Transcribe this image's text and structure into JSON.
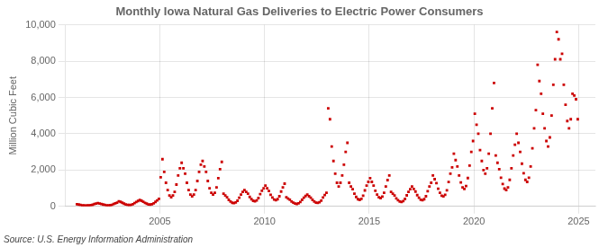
{
  "chart_data": {
    "type": "scatter",
    "title": "Monthly Iowa Natural Gas Deliveries to Electric Power Consumers",
    "ylabel": "Million Cubic Feet",
    "annotations": [
      "Source: U.S. Energy Information Administration"
    ],
    "color": "#cc0000",
    "marker": "square",
    "grid": true,
    "xlim": [
      2000.5,
      2025.8
    ],
    "xticks": [
      2005,
      2010,
      2015,
      2020,
      2025
    ],
    "ylim": [
      0,
      10000
    ],
    "yticks": [
      0,
      {
        "value": 2000,
        "label": "2,000"
      },
      {
        "value": 4000,
        "label": "4,000"
      },
      {
        "value": 6000,
        "label": "6,000"
      },
      {
        "value": 8000,
        "label": "8,000"
      },
      {
        "value": 10000,
        "label": "10,000"
      }
    ],
    "x": [
      2001.0416666666667,
      2001.125,
      2001.2083333333333,
      2001.2916666666667,
      2001.375,
      2001.4583333333333,
      2001.5416666666667,
      2001.625,
      2001.7083333333333,
      2001.7916666666667,
      2001.875,
      2001.9583333333333,
      2002.0416666666667,
      2002.125,
      2002.2083333333333,
      2002.2916666666667,
      2002.375,
      2002.4583333333333,
      2002.5416666666667,
      2002.625,
      2002.7083333333333,
      2002.7916666666667,
      2002.875,
      2002.9583333333333,
      2003.0416666666667,
      2003.125,
      2003.2083333333333,
      2003.2916666666667,
      2003.375,
      2003.4583333333333,
      2003.5416666666667,
      2003.625,
      2003.7083333333333,
      2003.7916666666667,
      2003.875,
      2003.9583333333333,
      2004.0416666666667,
      2004.125,
      2004.2083333333333,
      2004.2916666666667,
      2004.375,
      2004.4583333333333,
      2004.5416666666667,
      2004.625,
      2004.7083333333333,
      2004.7916666666667,
      2004.875,
      2004.9583333333333,
      2005.0416666666667,
      2005.125,
      2005.2083333333333,
      2005.2916666666667,
      2005.375,
      2005.4583333333333,
      2005.5416666666667,
      2005.625,
      2005.7083333333333,
      2005.7916666666667,
      2005.875,
      2005.9583333333333,
      2006.0416666666667,
      2006.125,
      2006.2083333333333,
      2006.2916666666667,
      2006.375,
      2006.4583333333333,
      2006.5416666666667,
      2006.625,
      2006.7083333333333,
      2006.7916666666667,
      2006.875,
      2006.9583333333333,
      2007.0416666666667,
      2007.125,
      2007.2083333333333,
      2007.2916666666667,
      2007.375,
      2007.4583333333333,
      2007.5416666666667,
      2007.625,
      2007.7083333333333,
      2007.7916666666667,
      2007.875,
      2007.9583333333333,
      2008.0416666666667,
      2008.125,
      2008.2083333333333,
      2008.2916666666667,
      2008.375,
      2008.4583333333333,
      2008.5416666666667,
      2008.625,
      2008.7083333333333,
      2008.7916666666667,
      2008.875,
      2008.9583333333333,
      2009.0416666666667,
      2009.125,
      2009.2083333333333,
      2009.2916666666667,
      2009.375,
      2009.4583333333333,
      2009.5416666666667,
      2009.625,
      2009.7083333333333,
      2009.7916666666667,
      2009.875,
      2009.9583333333333,
      2010.0416666666667,
      2010.125,
      2010.2083333333333,
      2010.2916666666667,
      2010.375,
      2010.4583333333333,
      2010.5416666666667,
      2010.625,
      2010.7083333333333,
      2010.7916666666667,
      2010.875,
      2010.9583333333333,
      2011.0416666666667,
      2011.125,
      2011.2083333333333,
      2011.2916666666667,
      2011.375,
      2011.4583333333333,
      2011.5416666666667,
      2011.625,
      2011.7083333333333,
      2011.7916666666667,
      2011.875,
      2011.9583333333333,
      2012.0416666666667,
      2012.125,
      2012.2083333333333,
      2012.2916666666667,
      2012.375,
      2012.4583333333333,
      2012.5416666666667,
      2012.625,
      2012.7083333333333,
      2012.7916666666667,
      2012.875,
      2012.9583333333333,
      2013.0416666666667,
      2013.125,
      2013.2083333333333,
      2013.2916666666667,
      2013.375,
      2013.4583333333333,
      2013.5416666666667,
      2013.625,
      2013.7083333333333,
      2013.7916666666667,
      2013.875,
      2013.9583333333333,
      2014.0416666666667,
      2014.125,
      2014.2083333333333,
      2014.2916666666667,
      2014.375,
      2014.4583333333333,
      2014.5416666666667,
      2014.625,
      2014.7083333333333,
      2014.7916666666667,
      2014.875,
      2014.9583333333333,
      2015.0416666666667,
      2015.125,
      2015.2083333333333,
      2015.2916666666667,
      2015.375,
      2015.4583333333333,
      2015.5416666666667,
      2015.625,
      2015.7083333333333,
      2015.7916666666667,
      2015.875,
      2015.9583333333333,
      2016.0416666666667,
      2016.125,
      2016.2083333333333,
      2016.2916666666667,
      2016.375,
      2016.4583333333333,
      2016.5416666666667,
      2016.625,
      2016.7083333333333,
      2016.7916666666667,
      2016.875,
      2016.9583333333333,
      2017.0416666666667,
      2017.125,
      2017.2083333333333,
      2017.2916666666667,
      2017.375,
      2017.4583333333333,
      2017.5416666666667,
      2017.625,
      2017.7083333333333,
      2017.7916666666667,
      2017.875,
      2017.9583333333333,
      2018.0416666666667,
      2018.125,
      2018.2083333333333,
      2018.2916666666667,
      2018.375,
      2018.4583333333333,
      2018.5416666666667,
      2018.625,
      2018.7083333333333,
      2018.7916666666667,
      2018.875,
      2018.9583333333333,
      2019.0416666666667,
      2019.125,
      2019.2083333333333,
      2019.2916666666667,
      2019.375,
      2019.4583333333333,
      2019.5416666666667,
      2019.625,
      2019.7083333333333,
      2019.7916666666667,
      2019.875,
      2019.9583333333333,
      2020.0416666666667,
      2020.125,
      2020.2083333333333,
      2020.2916666666667,
      2020.375,
      2020.4583333333333,
      2020.5416666666667,
      2020.625,
      2020.7083333333333,
      2020.7916666666667,
      2020.875,
      2020.9583333333333,
      2021.0416666666667,
      2021.125,
      2021.2083333333333,
      2021.2916666666667,
      2021.375,
      2021.4583333333333,
      2021.5416666666667,
      2021.625,
      2021.7083333333333,
      2021.7916666666667,
      2021.875,
      2021.9583333333333,
      2022.0416666666667,
      2022.125,
      2022.2083333333333,
      2022.2916666666667,
      2022.375,
      2022.4583333333333,
      2022.5416666666667,
      2022.625,
      2022.7083333333333,
      2022.7916666666667,
      2022.875,
      2022.9583333333333,
      2023.0416666666667,
      2023.125,
      2023.2083333333333,
      2023.2916666666667,
      2023.375,
      2023.4583333333333,
      2023.5416666666667,
      2023.625,
      2023.7083333333333,
      2023.7916666666667,
      2023.875,
      2023.9583333333333,
      2024.0416666666667,
      2024.125,
      2024.2083333333333,
      2024.2916666666667,
      2024.375,
      2024.4583333333333,
      2024.5416666666667,
      2024.625,
      2024.7083333333333,
      2024.7916666666667,
      2024.875,
      2024.9583333333333
    ],
    "values": [
      120,
      100,
      80,
      60,
      50,
      40,
      50,
      60,
      70,
      90,
      130,
      160,
      180,
      160,
      130,
      100,
      80,
      60,
      55,
      65,
      80,
      130,
      170,
      210,
      280,
      250,
      200,
      150,
      110,
      80,
      75,
      85,
      120,
      180,
      240,
      300,
      350,
      310,
      260,
      190,
      150,
      110,
      100,
      120,
      170,
      250,
      330,
      420,
      1600,
      2600,
      1900,
      1300,
      900,
      600,
      500,
      600,
      800,
      1200,
      1700,
      2100,
      2400,
      2100,
      1800,
      1300,
      900,
      650,
      550,
      650,
      900,
      1400,
      1900,
      2300,
      2500,
      2200,
      1900,
      1400,
      1000,
      750,
      650,
      750,
      1050,
      1550,
      2050,
      2450,
      700,
      600,
      500,
      360,
      270,
      200,
      180,
      220,
      310,
      480,
      650,
      800,
      900,
      800,
      700,
      520,
      400,
      310,
      280,
      330,
      460,
      680,
      860,
      1000,
      1150,
      1000,
      850,
      640,
      490,
      380,
      340,
      400,
      560,
      820,
      1050,
      1250,
      500,
      430,
      370,
      270,
      210,
      160,
      140,
      170,
      240,
      360,
      480,
      570,
      650,
      560,
      480,
      360,
      270,
      210,
      190,
      230,
      320,
      490,
      630,
      750,
      5400,
      4800,
      3300,
      2500,
      1800,
      1300,
      1100,
      1300,
      1700,
      2300,
      3000,
      3500,
      1300,
      1100,
      950,
      700,
      520,
      400,
      360,
      420,
      590,
      880,
      1150,
      1350,
      1550,
      1350,
      1150,
      860,
      650,
      500,
      460,
      540,
      750,
      1100,
      1450,
      1700,
      800,
      700,
      600,
      440,
      340,
      270,
      240,
      290,
      410,
      610,
      800,
      950,
      1100,
      960,
      820,
      620,
      480,
      370,
      340,
      400,
      560,
      840,
      1100,
      1300,
      1700,
      1500,
      1280,
      970,
      750,
      590,
      550,
      640,
      890,
      1340,
      1800,
      2150,
      2900,
      2550,
      2200,
      1700,
      1320,
      1050,
      960,
      1120,
      1560,
      2250,
      3000,
      3600,
      5100,
      4500,
      4000,
      3100,
      2500,
      2000,
      1800,
      2100,
      2900,
      4000,
      5400,
      6800,
      2800,
      2400,
      2050,
      1580,
      1230,
      980,
      900,
      1050,
      1460,
      2100,
      2800,
      3400,
      4000,
      3500,
      3000,
      2350,
      1830,
      1460,
      1350,
      1580,
      2200,
      3200,
      4300,
      5300,
      7800,
      6900,
      6200,
      5100,
      4300,
      3600,
      3300,
      3800,
      5000,
      6700,
      8100,
      9600,
      9200,
      8100,
      8400,
      6700,
      5600,
      4700,
      4300,
      4800,
      6200,
      6100,
      5900,
      4800
    ]
  }
}
